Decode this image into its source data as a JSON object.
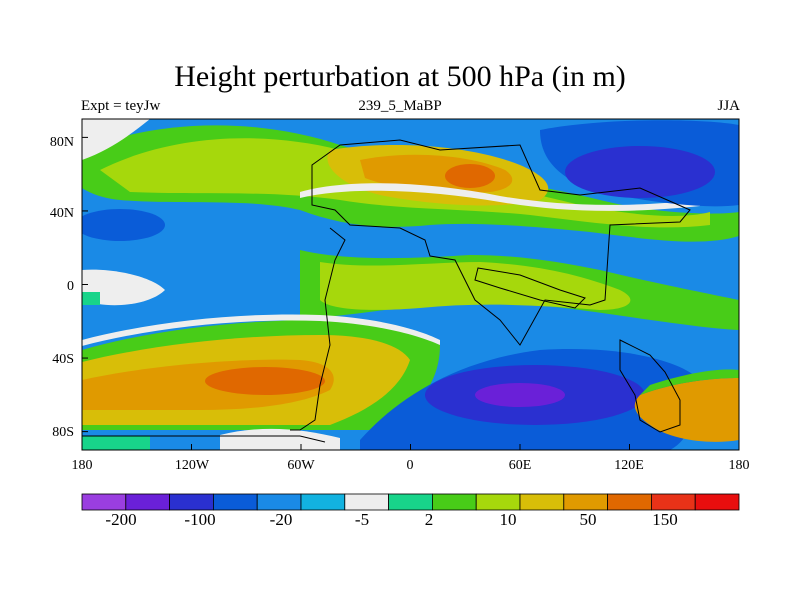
{
  "chart_data": {
    "type": "heatmap",
    "title": "Height perturbation at 500 hPa (in m)",
    "subtitle_left": "Expt = teyJw",
    "subtitle_center": "239_5_MaBP",
    "subtitle_right": "JJA",
    "x_ticks": [
      "180",
      "120W",
      "60W",
      "0",
      "60E",
      "120E",
      "180"
    ],
    "x_range": [
      -180,
      180
    ],
    "y_ticks": [
      "80N",
      "40N",
      "0",
      "40S",
      "80S"
    ],
    "y_range": [
      -90,
      90
    ],
    "colorbar": {
      "labels": [
        "-200",
        "-100",
        "-20",
        "-5",
        "2",
        "10",
        "50",
        "150"
      ],
      "colors": [
        "#9a3ee0",
        "#6a20d8",
        "#2a30d0",
        "#0a5cd8",
        "#1a8ae6",
        "#12b2e0",
        "#eeeeee",
        "#18d48a",
        "#48cc18",
        "#a6d80c",
        "#d8be08",
        "#e09a00",
        "#e06800",
        "#e83218",
        "#e80e0e"
      ]
    }
  }
}
